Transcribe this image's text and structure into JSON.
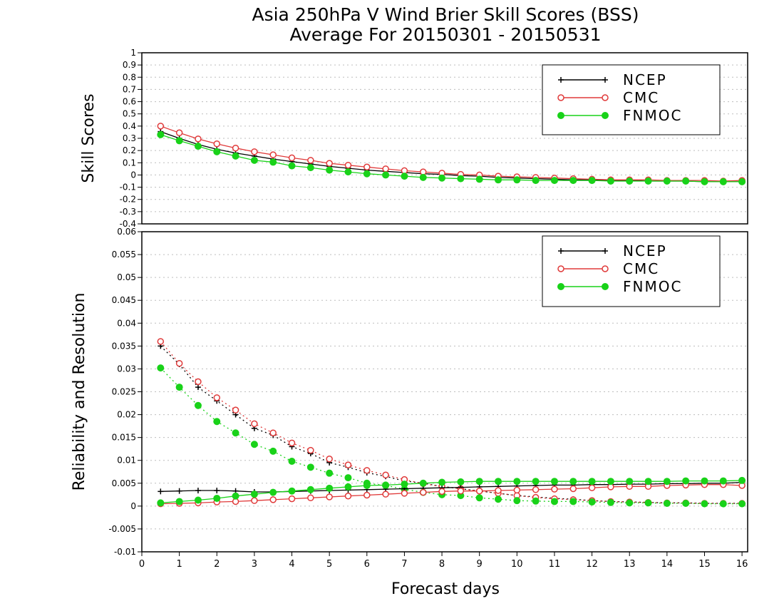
{
  "chart_data": {
    "title": "Asia 250hPa V Wind Brier Skill Scores (BSS)",
    "subtitle": "Average For 20150301 - 20150531",
    "xlabel": "Forecast days",
    "xlim": [
      0,
      16.15
    ],
    "x_ticks": [
      "0",
      "1",
      "2",
      "3",
      "4",
      "5",
      "6",
      "7",
      "8",
      "9",
      "10",
      "11",
      "12",
      "13",
      "14",
      "15",
      "16"
    ],
    "colors": {
      "NCEP": "#000000",
      "CMC": "#e03a3a",
      "FNMOC": "#19d219"
    },
    "panels": [
      {
        "type": "line",
        "ylabel": "Skill Scores",
        "ylim": [
          -0.4,
          1
        ],
        "y_ticks": [
          "1",
          "0.9",
          "0.8",
          "0.7",
          "0.6",
          "0.5",
          "0.4",
          "0.3",
          "0.2",
          "0.1",
          "0",
          "-0.1",
          "-0.2",
          "-0.3",
          "-0.4"
        ],
        "grid": true,
        "legend": "top-right",
        "x": [
          0.5,
          1,
          1.5,
          2,
          2.5,
          3,
          3.5,
          4,
          4.5,
          5,
          5.5,
          6,
          6.5,
          7,
          7.5,
          8,
          8.5,
          9,
          9.5,
          10,
          10.5,
          11,
          11.5,
          12,
          12.5,
          13,
          13.5,
          14,
          14.5,
          15,
          15.5,
          16
        ],
        "series": [
          {
            "name": "NCEP",
            "style": "solid",
            "marker": "plus",
            "values": [
              0.355,
              0.3,
              0.25,
              0.21,
              0.18,
              0.155,
              0.13,
              0.11,
              0.09,
              0.07,
              0.055,
              0.04,
              0.03,
              0.02,
              0.01,
              0.005,
              -0.005,
              -0.01,
              -0.02,
              -0.025,
              -0.03,
              -0.035,
              -0.04,
              -0.04,
              -0.045,
              -0.045,
              -0.05,
              -0.05,
              -0.05,
              -0.055,
              -0.055,
              -0.055
            ]
          },
          {
            "name": "CMC",
            "style": "solid",
            "marker": "open-circle",
            "values": [
              0.4,
              0.345,
              0.295,
              0.255,
              0.22,
              0.19,
              0.165,
              0.14,
              0.12,
              0.095,
              0.08,
              0.065,
              0.05,
              0.035,
              0.025,
              0.015,
              0.005,
              0.0,
              -0.01,
              -0.015,
              -0.02,
              -0.025,
              -0.03,
              -0.035,
              -0.04,
              -0.04,
              -0.04,
              -0.045,
              -0.045,
              -0.045,
              -0.05,
              -0.045
            ]
          },
          {
            "name": "FNMOC",
            "style": "solid",
            "marker": "filled-circle",
            "values": [
              0.33,
              0.28,
              0.235,
              0.19,
              0.155,
              0.12,
              0.105,
              0.075,
              0.06,
              0.04,
              0.025,
              0.01,
              0.0,
              -0.01,
              -0.02,
              -0.025,
              -0.03,
              -0.035,
              -0.04,
              -0.04,
              -0.045,
              -0.045,
              -0.045,
              -0.045,
              -0.05,
              -0.05,
              -0.05,
              -0.05,
              -0.05,
              -0.055,
              -0.055,
              -0.055
            ]
          }
        ]
      },
      {
        "type": "line",
        "ylabel": "Reliability and Resolution",
        "ylim": [
          -0.01,
          0.06
        ],
        "y_ticks": [
          "0.06",
          "0.055",
          "0.05",
          "0.045",
          "0.04",
          "0.035",
          "0.03",
          "0.025",
          "0.02",
          "0.015",
          "0.01",
          "0.005",
          "0",
          "-0.005",
          "-0.01"
        ],
        "grid": true,
        "legend": "top-right",
        "x": [
          0.5,
          1,
          1.5,
          2,
          2.5,
          3,
          3.5,
          4,
          4.5,
          5,
          5.5,
          6,
          6.5,
          7,
          7.5,
          8,
          8.5,
          9,
          9.5,
          10,
          10.5,
          11,
          11.5,
          12,
          12.5,
          13,
          13.5,
          14,
          14.5,
          15,
          15.5,
          16
        ],
        "series": [
          {
            "name": "NCEP",
            "component": "reliability",
            "style": "dotted",
            "marker": "plus",
            "values": [
              0.035,
              0.031,
              0.026,
              0.023,
              0.02,
              0.017,
              0.0155,
              0.013,
              0.0115,
              0.0095,
              0.0085,
              0.0073,
              0.0065,
              0.0055,
              0.005,
              0.0043,
              0.0038,
              0.0033,
              0.0028,
              0.0023,
              0.002,
              0.0017,
              0.0015,
              0.0012,
              0.001,
              0.0009,
              0.0008,
              0.0007,
              0.0007,
              0.0006,
              0.0006,
              0.0006
            ]
          },
          {
            "name": "CMC",
            "component": "reliability",
            "style": "dotted",
            "marker": "open-circle",
            "values": [
              0.036,
              0.0312,
              0.0272,
              0.0237,
              0.021,
              0.018,
              0.016,
              0.0138,
              0.0122,
              0.0103,
              0.009,
              0.0078,
              0.0068,
              0.0058,
              0.0049,
              0.0043,
              0.0038,
              0.0033,
              0.0028,
              0.0023,
              0.0019,
              0.0016,
              0.0014,
              0.0012,
              0.001,
              0.0009,
              0.0008,
              0.0007,
              0.0007,
              0.0006,
              0.0006,
              0.0006
            ]
          },
          {
            "name": "FNMOC",
            "component": "reliability",
            "style": "dotted",
            "marker": "filled-circle",
            "values": [
              0.0302,
              0.026,
              0.022,
              0.0185,
              0.016,
              0.0135,
              0.012,
              0.0098,
              0.0085,
              0.0072,
              0.0062,
              0.005,
              0.0045,
              0.0037,
              0.003,
              0.0025,
              0.0023,
              0.0018,
              0.0015,
              0.0012,
              0.0011,
              0.001,
              0.001,
              0.0009,
              0.0008,
              0.0007,
              0.0007,
              0.0006,
              0.0006,
              0.0005,
              0.0005,
              0.0005
            ]
          },
          {
            "name": "NCEP",
            "component": "resolution",
            "style": "solid",
            "marker": "plus",
            "values": [
              0.0032,
              0.0033,
              0.0034,
              0.0034,
              0.0033,
              0.0031,
              0.0031,
              0.0032,
              0.0033,
              0.0034,
              0.0035,
              0.0036,
              0.0037,
              0.0038,
              0.0039,
              0.004,
              0.0041,
              0.0042,
              0.0043,
              0.0044,
              0.0045,
              0.0046,
              0.0046,
              0.0047,
              0.0047,
              0.0048,
              0.0048,
              0.0049,
              0.0049,
              0.005,
              0.005,
              0.0052
            ]
          },
          {
            "name": "CMC",
            "component": "resolution",
            "style": "solid",
            "marker": "open-circle",
            "values": [
              0.0005,
              0.0006,
              0.0007,
              0.0009,
              0.001,
              0.0012,
              0.0014,
              0.0016,
              0.0018,
              0.002,
              0.0022,
              0.0024,
              0.0026,
              0.0028,
              0.003,
              0.0032,
              0.0033,
              0.0033,
              0.0034,
              0.0035,
              0.0036,
              0.0037,
              0.0038,
              0.004,
              0.0042,
              0.0043,
              0.0043,
              0.0045,
              0.0046,
              0.0047,
              0.0047,
              0.0045
            ]
          },
          {
            "name": "FNMOC",
            "component": "resolution",
            "style": "solid",
            "marker": "filled-circle",
            "values": [
              0.0007,
              0.001,
              0.0013,
              0.0017,
              0.0022,
              0.0026,
              0.003,
              0.0033,
              0.0036,
              0.0039,
              0.0042,
              0.0045,
              0.0046,
              0.0048,
              0.005,
              0.0052,
              0.0053,
              0.0054,
              0.0054,
              0.0054,
              0.0054,
              0.0054,
              0.0054,
              0.0054,
              0.0054,
              0.0054,
              0.0054,
              0.0054,
              0.0055,
              0.0055,
              0.0055,
              0.0056
            ]
          }
        ]
      }
    ]
  }
}
